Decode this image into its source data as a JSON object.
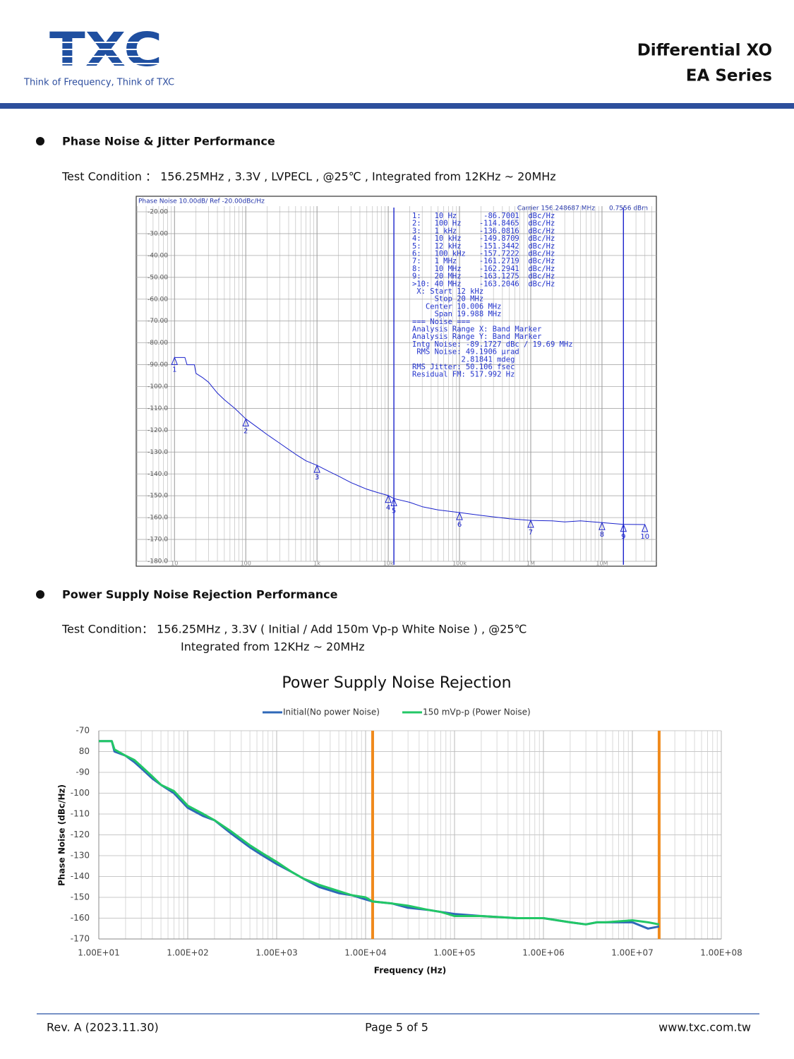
{
  "header": {
    "logo": "TXC",
    "tagline": "Think of Frequency, Think of TXC",
    "title": [
      "Differential XO",
      "EA Series"
    ]
  },
  "sections": [
    {
      "heading": "Phase Noise & Jitter Performance",
      "condition": [
        "Test Condition ： 156.25MHz , 3.3V , LVPECL , @25℃ , Integrated from 12KHz ~ 20MHz"
      ]
    },
    {
      "heading": "Power Supply Noise Rejection Performance",
      "condition": [
        "Test Condition： 156.25MHz , 3.3V ( Initial / Add 150m Vp-p White Noise ) , @25℃",
        "Integrated from 12KHz ~ 20MHz"
      ]
    }
  ],
  "chart_data": [
    {
      "type": "line",
      "title": "Phase Noise 10.00dB/ Ref -20.00dBc/Hz",
      "subtitle": [
        "Carrier 156.248687 MHz",
        "0.7556 dBm"
      ],
      "xscale": "log",
      "xlim": [
        2.9,
        58000000
      ],
      "xticks": [
        {
          "value": 10,
          "label": "10"
        },
        {
          "value": 100,
          "label": "100"
        },
        {
          "value": 1000,
          "label": "1k"
        },
        {
          "value": 10000,
          "label": "10k"
        },
        {
          "value": 100000,
          "label": "100k"
        },
        {
          "value": 1000000,
          "label": "1M"
        },
        {
          "value": 10000000,
          "label": "10M"
        }
      ],
      "ylim": [
        -180,
        -20
      ],
      "yticks": [
        {
          "value": -20,
          "label": "-20.00"
        },
        {
          "value": -30,
          "label": "-30.00"
        },
        {
          "value": -40,
          "label": "-40.00"
        },
        {
          "value": -50,
          "label": "-50.00"
        },
        {
          "value": -60,
          "label": "-60.00"
        },
        {
          "value": -70,
          "label": "-70.00"
        },
        {
          "value": -80,
          "label": "-80.00"
        },
        {
          "value": -90,
          "label": "-90.00"
        },
        {
          "value": -100,
          "label": "-100.0"
        },
        {
          "value": -110,
          "label": "-110.0"
        },
        {
          "value": -120,
          "label": "-120.0"
        },
        {
          "value": -130,
          "label": "-130.0"
        },
        {
          "value": -140,
          "label": "-140.0"
        },
        {
          "value": -150,
          "label": "-150.0"
        },
        {
          "value": -160,
          "label": "-160.0"
        },
        {
          "value": -170,
          "label": "-170.0"
        },
        {
          "value": -180,
          "label": "-180.0"
        }
      ],
      "grid": true,
      "x": [
        10,
        14,
        15,
        19,
        20,
        25,
        30,
        40,
        50,
        70,
        100,
        150,
        200,
        300,
        500,
        700,
        1000,
        1500,
        2000,
        3000,
        5000,
        7000,
        10000,
        12000,
        20000,
        30000,
        50000,
        100000,
        200000,
        500000,
        1000000,
        2000000,
        3000000,
        5000000,
        10000000,
        20000000,
        40000000
      ],
      "series": [
        {
          "color": "#1a22cc",
          "values": [
            -86.7,
            -86.7,
            -90,
            -90,
            -94,
            -96,
            -98,
            -103,
            -106,
            -110,
            -114.8,
            -119,
            -122,
            -126,
            -131,
            -134,
            -136.1,
            -139,
            -141,
            -144,
            -147,
            -148.5,
            -149.9,
            -151.3,
            -153,
            -155,
            -156.5,
            -157.7,
            -159,
            -160.5,
            -161.3,
            -161.5,
            -162,
            -161.5,
            -162.3,
            -163.1,
            -163.2
          ]
        }
      ],
      "markers": {
        "labels": [
          "1",
          "2",
          "3",
          "4",
          "5",
          "6",
          "7",
          "8",
          "9",
          "10"
        ],
        "x": [
          10,
          100,
          1000,
          10000,
          12000,
          100000,
          1000000,
          10000000,
          20000000,
          40000000
        ],
        "values": [
          -86.7001,
          -114.8465,
          -136.0816,
          -149.8709,
          -151.3442,
          -157.7222,
          -161.2719,
          -162.2941,
          -163.1275,
          -163.2046
        ]
      },
      "band_x": [
        12000,
        20000000
      ],
      "annotations": [
        "1:   10 Hz      -86.7001  dBc/Hz",
        "2:   100 Hz    -114.8465  dBc/Hz",
        "3:   1 kHz     -136.0816  dBc/Hz",
        "4:   10 kHz    -149.8709  dBc/Hz",
        "5:   12 kHz    -151.3442  dBc/Hz",
        "6:   100 kHz   -157.7222  dBc/Hz",
        "7:   1 MHz     -161.2719  dBc/Hz",
        "8:   10 MHz    -162.2941  dBc/Hz",
        "9:   20 MHz    -163.1275  dBc/Hz",
        ">10: 40 MHz    -163.2046  dBc/Hz",
        " X: Start 12 kHz",
        "     Stop 20 MHz",
        "   Center 10.006 MHz",
        "     Span 19.988 MHz",
        "=== Noise ===",
        "Analysis Range X: Band Marker",
        "Analysis Range Y: Band Marker",
        "Intg Noise: -89.1727 dBc / 19.69 MHz",
        " RMS Noise: 49.1906 µrad",
        "           2.81841 mdeg",
        "RMS Jitter: 50.106 fsec",
        "Residual FM: 517.992 Hz"
      ]
    },
    {
      "type": "line",
      "title": "Power Supply Noise Rejection",
      "x_label": "Frequency (Hz)",
      "y_label": "Phase Noise (dBc/Hz)",
      "xscale": "log",
      "xlim": [
        10,
        100000000
      ],
      "xticks": [
        {
          "value": 10,
          "label": "1.00E+01"
        },
        {
          "value": 100,
          "label": "1.00E+02"
        },
        {
          "value": 1000,
          "label": "1.00E+03"
        },
        {
          "value": 10000,
          "label": "1.00E+04"
        },
        {
          "value": 100000,
          "label": "1.00E+05"
        },
        {
          "value": 1000000,
          "label": "1.00E+06"
        },
        {
          "value": 10000000,
          "label": "1.00E+07"
        },
        {
          "value": 100000000,
          "label": "1.00E+08"
        }
      ],
      "ylim": [
        -170,
        -70
      ],
      "yticks": [
        -70,
        {
          "value": -80,
          "label": "80"
        },
        -90,
        -100,
        -110,
        -120,
        -130,
        -140,
        -150,
        -160,
        -170
      ],
      "grid": true,
      "legend": "top",
      "x": [
        10,
        14,
        15,
        20,
        25,
        30,
        40,
        50,
        70,
        100,
        150,
        200,
        300,
        500,
        700,
        1000,
        1500,
        2000,
        3000,
        5000,
        7000,
        10000,
        12000,
        20000,
        30000,
        50000,
        70000,
        100000,
        200000,
        500000,
        1000000,
        2000000,
        3000000,
        4000000,
        5000000,
        10000000,
        15000000,
        20000000
      ],
      "series": [
        {
          "name": "Initial(No power Noise)",
          "color": "#2e68b8",
          "values": [
            -75,
            -75,
            -80,
            -82,
            -85,
            -88,
            -93,
            -96,
            -100,
            -107,
            -111,
            -113,
            -119,
            -126,
            -130,
            -134,
            -138,
            -141,
            -145,
            -148,
            -149,
            -151,
            -152,
            -153,
            -155,
            -156,
            -157,
            -158,
            -159,
            -160,
            -160,
            -162,
            -163,
            -162,
            -162,
            -162,
            -165,
            -164
          ]
        },
        {
          "name": "150 mVp-p (Power Noise)",
          "color": "#22c766",
          "values": [
            -75,
            -75,
            -79,
            -82,
            -84,
            -87,
            -92,
            -96,
            -99,
            -106,
            -110,
            -113,
            -118,
            -125,
            -129,
            -133,
            -138,
            -141,
            -144,
            -147,
            -149,
            -150,
            -152,
            -153,
            -154,
            -156,
            -157,
            -159,
            -159,
            -160,
            -160,
            -162,
            -163,
            -162,
            -162,
            -161,
            -162,
            -163
          ]
        }
      ],
      "band_x": [
        12000,
        20000000
      ],
      "band_color": "#f08a1c"
    }
  ],
  "footer": {
    "left": "Rev. A (2023.11.30)",
    "center": "Page 5 of 5",
    "right": "www.txc.com.tw"
  }
}
